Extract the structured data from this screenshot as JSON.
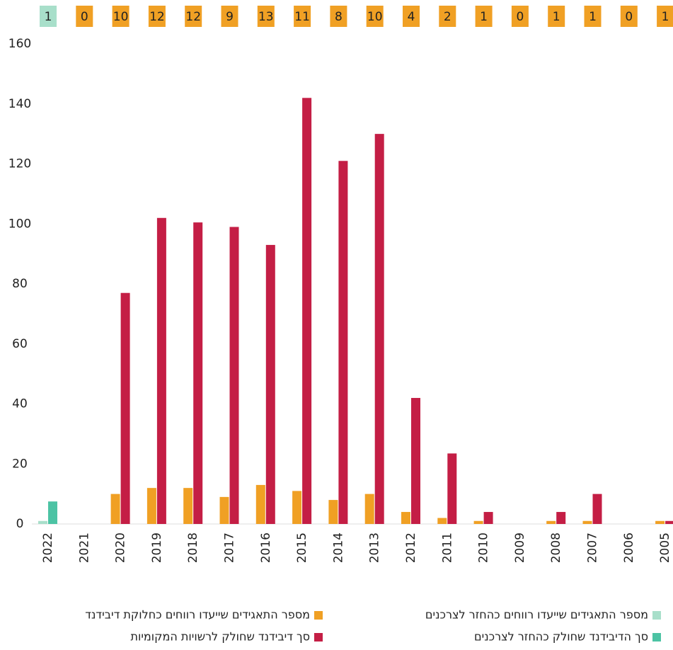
{
  "chart_data": {
    "type": "bar",
    "categories": [
      "2022",
      "2021",
      "2020",
      "2019",
      "2018",
      "2017",
      "2016",
      "2015",
      "2014",
      "2013",
      "2012",
      "2011",
      "2010",
      "2009",
      "2008",
      "2007",
      "2006",
      "2005"
    ],
    "series": [
      {
        "name": "מספר התאגידים שייעדו רווחים כהחזר לצרכנים",
        "color": "#a8dfca",
        "role": "count",
        "values": [
          1,
          null,
          null,
          null,
          null,
          null,
          null,
          null,
          null,
          null,
          null,
          null,
          null,
          null,
          null,
          null,
          null,
          null
        ]
      },
      {
        "name": "סך הדיבידנד שחולק כהחזר לצרכנים",
        "color": "#4cc3a4",
        "values": [
          7.5,
          null,
          null,
          null,
          null,
          null,
          null,
          null,
          null,
          null,
          null,
          null,
          null,
          null,
          null,
          null,
          null,
          null
        ]
      },
      {
        "name": "מספר התאגידים שייעדו רווחים כחלוקת דיבידנד",
        "color": "#f0a024",
        "role": "count",
        "values": [
          null,
          0,
          10,
          12,
          12,
          9,
          13,
          11,
          8,
          10,
          4,
          2,
          1,
          0,
          1,
          1,
          0,
          1
        ]
      },
      {
        "name": "סך דיבידנד שחולק לרשויות המקומיות",
        "color": "#c41e45",
        "values": [
          null,
          0,
          77,
          102,
          100.5,
          99,
          93,
          142,
          121,
          130,
          42,
          23.5,
          4,
          0,
          4,
          10,
          0,
          1
        ]
      }
    ],
    "ylim": [
      0,
      160
    ],
    "yticks": [
      0,
      20,
      40,
      60,
      80,
      100,
      120,
      140,
      160
    ]
  }
}
